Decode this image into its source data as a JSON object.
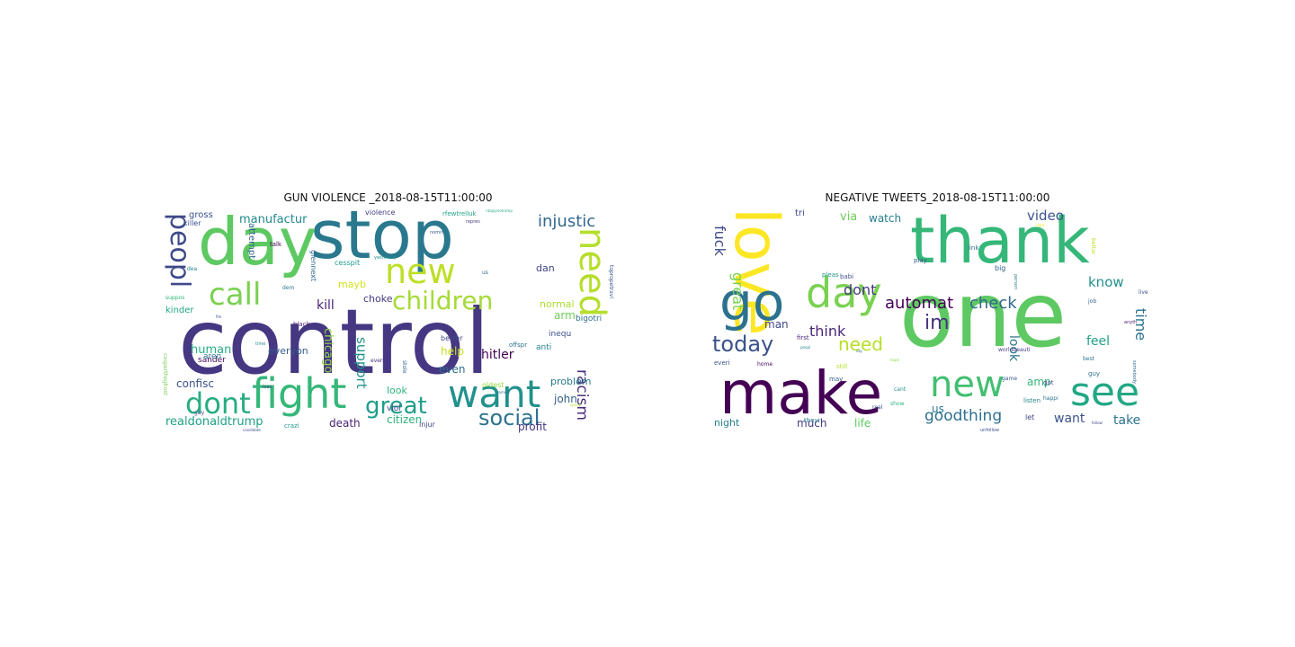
{
  "chart_data": [
    {
      "type": "wordcloud",
      "title": "GUN VIOLENCE _2018-08-15T11:00:00",
      "words": [
        {
          "text": "control",
          "weight": 100,
          "color": "#453781"
        },
        {
          "text": "stop",
          "weight": 74,
          "color": "#2a788e"
        },
        {
          "text": "day",
          "weight": 72,
          "color": "#5ec962"
        },
        {
          "text": "fight",
          "weight": 46,
          "color": "#35b779"
        },
        {
          "text": "want",
          "weight": 42,
          "color": "#21918c"
        },
        {
          "text": "need",
          "weight": 40,
          "color": "#b5de2b"
        },
        {
          "text": "new",
          "weight": 38,
          "color": "#bddf26"
        },
        {
          "text": "call",
          "weight": 34,
          "color": "#7ad151"
        },
        {
          "text": "dont",
          "weight": 32,
          "color": "#27ad81"
        },
        {
          "text": "peopl",
          "weight": 30,
          "color": "#3e4a89"
        },
        {
          "text": "children",
          "weight": 28,
          "color": "#a5db36"
        },
        {
          "text": "great",
          "weight": 26,
          "color": "#1f9e89"
        },
        {
          "text": "social",
          "weight": 24,
          "color": "#2c728e"
        },
        {
          "text": "injustic",
          "weight": 18,
          "color": "#31688e"
        },
        {
          "text": "racism",
          "weight": 17,
          "color": "#472d7b"
        },
        {
          "text": "support",
          "weight": 15,
          "color": "#21918c"
        },
        {
          "text": "hitler",
          "weight": 14,
          "color": "#440154"
        },
        {
          "text": "kill",
          "weight": 14,
          "color": "#482576"
        },
        {
          "text": "human",
          "weight": 13,
          "color": "#29af7f"
        },
        {
          "text": "realdonaldtrump",
          "weight": 13,
          "color": "#1fa187"
        },
        {
          "text": "chicago",
          "weight": 13,
          "color": "#8fd744"
        },
        {
          "text": "manufactur",
          "weight": 13,
          "color": "#238a8d"
        },
        {
          "text": "confisc",
          "weight": 12,
          "color": "#3b528b"
        },
        {
          "text": "death",
          "weight": 12,
          "color": "#481f70"
        },
        {
          "text": "citizen",
          "weight": 12,
          "color": "#2db27d"
        },
        {
          "text": "profit",
          "weight": 12,
          "color": "#46337e"
        },
        {
          "text": "john",
          "weight": 12,
          "color": "#355f8d"
        },
        {
          "text": "arm",
          "weight": 12,
          "color": "#6ece58"
        },
        {
          "text": "even",
          "weight": 12,
          "color": "#2e6e8e"
        },
        {
          "text": "help",
          "weight": 12,
          "color": "#c8e020"
        },
        {
          "text": "look",
          "weight": 11,
          "color": "#2fb47c"
        },
        {
          "text": "dan",
          "weight": 11,
          "color": "#414487"
        },
        {
          "text": "normal",
          "weight": 11,
          "color": "#addc30"
        },
        {
          "text": "problem",
          "weight": 11,
          "color": "#287c8e"
        },
        {
          "text": "everyon",
          "weight": 11,
          "color": "#365c8d"
        },
        {
          "text": "mayb",
          "weight": 11,
          "color": "#d0e11c"
        },
        {
          "text": "choke",
          "weight": 11,
          "color": "#443983"
        },
        {
          "text": "attempt",
          "weight": 10,
          "color": "#34618d"
        },
        {
          "text": "gross",
          "weight": 10,
          "color": "#3b528b"
        },
        {
          "text": "kinder",
          "weight": 10,
          "color": "#22a884"
        },
        {
          "text": "bigotri",
          "weight": 9,
          "color": "#2c728e"
        },
        {
          "text": "sander",
          "weight": 9,
          "color": "#46075a"
        },
        {
          "text": "aren",
          "weight": 9,
          "color": "#2a768e"
        },
        {
          "text": "viol",
          "weight": 9,
          "color": "#404688"
        },
        {
          "text": "anti",
          "weight": 9,
          "color": "#27808e"
        },
        {
          "text": "inequ",
          "weight": 9,
          "color": "#3c4f8a"
        },
        {
          "text": "cesspit",
          "weight": 8,
          "color": "#1e9b8a"
        },
        {
          "text": "glennext",
          "weight": 8,
          "color": "#31688e"
        },
        {
          "text": "violence",
          "weight": 8,
          "color": "#433e85"
        },
        {
          "text": "injur",
          "weight": 8,
          "color": "#424186"
        },
        {
          "text": "oldest",
          "weight": 8,
          "color": "#9bd93c"
        },
        {
          "text": "better",
          "weight": 8,
          "color": "#3f4889"
        },
        {
          "text": "killer",
          "weight": 8,
          "color": "#3b528b"
        },
        {
          "text": "black",
          "weight": 7,
          "color": "#482878"
        },
        {
          "text": "crazi",
          "weight": 7,
          "color": "#1f968b"
        },
        {
          "text": "talk",
          "weight": 7,
          "color": "#440154"
        },
        {
          "text": "offspr",
          "weight": 7,
          "color": "#2d708e"
        },
        {
          "text": "stole",
          "weight": 6,
          "color": "#34618d"
        },
        {
          "text": "topropetravi",
          "weight": 6,
          "color": "#39568c"
        },
        {
          "text": "rfewtrelluk",
          "weight": 7,
          "color": "#20a386"
        },
        {
          "text": "caspertheghost",
          "weight": 6,
          "color": "#77d153"
        },
        {
          "text": "guy",
          "weight": 6,
          "color": "#3f4889"
        },
        {
          "text": "dea",
          "weight": 6,
          "color": "#25848e"
        },
        {
          "text": "dem",
          "weight": 6,
          "color": "#2a788e"
        },
        {
          "text": "suppos",
          "weight": 6,
          "color": "#32b67a"
        },
        {
          "text": "time",
          "weight": 5,
          "color": "#20928c"
        },
        {
          "text": "leav",
          "weight": 5,
          "color": "#3e4989"
        },
        {
          "text": "everi",
          "weight": 6,
          "color": "#472c7a"
        },
        {
          "text": "us",
          "weight": 6,
          "color": "#2d708e"
        },
        {
          "text": "yesterday",
          "weight": 5,
          "color": "#228c8d"
        },
        {
          "text": "nomin",
          "weight": 5,
          "color": "#38598c"
        },
        {
          "text": "candidate",
          "weight": 4,
          "color": "#3e4c8a"
        },
        {
          "text": "spend",
          "weight": 4,
          "color": "#b8de29"
        },
        {
          "text": "domest",
          "weight": 4,
          "color": "#2b748e"
        },
        {
          "text": "repres",
          "weight": 5,
          "color": "#433d84"
        },
        {
          "text": "ritajoynotrump",
          "weight": 4,
          "color": "#22a785"
        },
        {
          "text": "file",
          "weight": 4,
          "color": "#3a548c"
        }
      ]
    },
    {
      "type": "wordcloud",
      "title": "NEGATIVE TWEETS_2018-08-15T11:00:00",
      "words": [
        {
          "text": "one",
          "weight": 100,
          "color": "#5ec962"
        },
        {
          "text": "thank",
          "weight": 70,
          "color": "#35b779"
        },
        {
          "text": "love",
          "weight": 68,
          "color": "#fde725"
        },
        {
          "text": "make",
          "weight": 66,
          "color": "#440154"
        },
        {
          "text": "go",
          "weight": 58,
          "color": "#2c728e"
        },
        {
          "text": "day",
          "weight": 46,
          "color": "#7ad151"
        },
        {
          "text": "see",
          "weight": 44,
          "color": "#22a884"
        },
        {
          "text": "new",
          "weight": 40,
          "color": "#43bf71"
        },
        {
          "text": "today",
          "weight": 24,
          "color": "#3b528b"
        },
        {
          "text": "im",
          "weight": 22,
          "color": "#46337e"
        },
        {
          "text": "need",
          "weight": 20,
          "color": "#b8de29"
        },
        {
          "text": "automat",
          "weight": 18,
          "color": "#440154"
        },
        {
          "text": "check",
          "weight": 18,
          "color": "#31688e"
        },
        {
          "text": "goodthing",
          "weight": 17,
          "color": "#2d708e"
        },
        {
          "text": "time",
          "weight": 16,
          "color": "#2c728e"
        },
        {
          "text": "fuck",
          "weight": 16,
          "color": "#3e4a89"
        },
        {
          "text": "great",
          "weight": 16,
          "color": "#7ad151"
        },
        {
          "text": "think",
          "weight": 16,
          "color": "#482878"
        },
        {
          "text": "dont",
          "weight": 16,
          "color": "#453781"
        },
        {
          "text": "video",
          "weight": 15,
          "color": "#3b528b"
        },
        {
          "text": "know",
          "weight": 15,
          "color": "#21918c"
        },
        {
          "text": "look",
          "weight": 14,
          "color": "#2a788e"
        },
        {
          "text": "want",
          "weight": 14,
          "color": "#3b528b"
        },
        {
          "text": "take",
          "weight": 14,
          "color": "#2c728e"
        },
        {
          "text": "feel",
          "weight": 14,
          "color": "#1fa187"
        },
        {
          "text": "via",
          "weight": 13,
          "color": "#6ece58"
        },
        {
          "text": "watch",
          "weight": 12,
          "color": "#287c8e"
        },
        {
          "text": "man",
          "weight": 12,
          "color": "#3f4889"
        },
        {
          "text": "amp",
          "weight": 12,
          "color": "#35b779"
        },
        {
          "text": "much",
          "weight": 12,
          "color": "#443983"
        },
        {
          "text": "us",
          "weight": 12,
          "color": "#2a788e"
        },
        {
          "text": "life",
          "weight": 12,
          "color": "#5ec962"
        },
        {
          "text": "night",
          "weight": 11,
          "color": "#27808e"
        },
        {
          "text": "tri",
          "weight": 10,
          "color": "#3e4989"
        },
        {
          "text": "let",
          "weight": 8,
          "color": "#424186"
        },
        {
          "text": "first",
          "weight": 7,
          "color": "#472c7a"
        },
        {
          "text": "everi",
          "weight": 7,
          "color": "#3a548c"
        },
        {
          "text": "home",
          "weight": 6,
          "color": "#46075a"
        },
        {
          "text": "theyr",
          "weight": 7,
          "color": "#287d8e"
        },
        {
          "text": "still",
          "weight": 7,
          "color": "#b5de2b"
        },
        {
          "text": "may",
          "weight": 7,
          "color": "#365c8d"
        },
        {
          "text": "pleas",
          "weight": 7,
          "color": "#1f968b"
        },
        {
          "text": "play",
          "weight": 7,
          "color": "#39568c"
        },
        {
          "text": "babi",
          "weight": 7,
          "color": "#3b528b"
        },
        {
          "text": "link",
          "weight": 7,
          "color": "#2e6e8e"
        },
        {
          "text": "big",
          "weight": 8,
          "color": "#33638d"
        },
        {
          "text": "got",
          "weight": 7,
          "color": "#3f4788"
        },
        {
          "text": "guy",
          "weight": 7,
          "color": "#2d708e"
        },
        {
          "text": "listen",
          "weight": 7,
          "color": "#25848e"
        },
        {
          "text": "game",
          "weight": 6,
          "color": "#355f8d"
        },
        {
          "text": "show",
          "weight": 6,
          "color": "#2db27d"
        },
        {
          "text": "real",
          "weight": 6,
          "color": "#3d4d8a"
        },
        {
          "text": "cant",
          "weight": 6,
          "color": "#20928c"
        },
        {
          "text": "best",
          "weight": 6,
          "color": "#2a768e"
        },
        {
          "text": "job",
          "weight": 6,
          "color": "#34618d"
        },
        {
          "text": "live",
          "weight": 6,
          "color": "#3c4f8a"
        },
        {
          "text": "better",
          "weight": 6,
          "color": "#bddf26"
        },
        {
          "text": "worldbeauti",
          "weight": 6,
          "color": "#433e85"
        },
        {
          "text": "happi",
          "weight": 6,
          "color": "#2b748e"
        },
        {
          "text": "somebody",
          "weight": 5,
          "color": "#306a8e"
        },
        {
          "text": "anyth",
          "weight": 5,
          "color": "#482071"
        },
        {
          "text": "unfollow",
          "weight": 5,
          "color": "#3b528b"
        },
        {
          "text": "peopl",
          "weight": 4,
          "color": "#238a8d"
        },
        {
          "text": "person",
          "weight": 5,
          "color": "#2a788e"
        },
        {
          "text": "follow",
          "weight": 4,
          "color": "#3e4989"
        },
        {
          "text": "say",
          "weight": 4,
          "color": "#31688e"
        },
        {
          "text": "hope",
          "weight": 4,
          "color": "#8fd744"
        },
        {
          "text": "right",
          "weight": 4,
          "color": "#fde725"
        }
      ]
    }
  ]
}
